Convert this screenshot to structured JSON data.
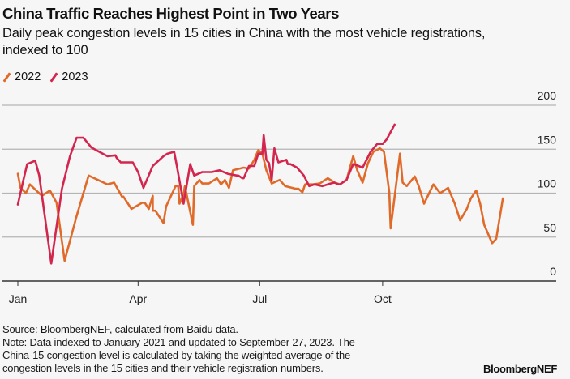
{
  "header": {
    "title": "China Traffic Reaches Highest Point in Two Years",
    "subtitle": "Daily peak congestion levels in 15 cities in China with the most vehicle registrations, indexed to 100"
  },
  "footer": {
    "source": "Source: BloombergNEF, calculated from Baidu data.",
    "note_line1": "Note: Data indexed to January 2021 and updated to September 27, 2023. The",
    "note_line2": "China-15 congestion level is calculated by taking the weighted average of the",
    "note_line3": "congestion levels in the 15 cities and their vehicle registration numbers.",
    "brand": "BloombergNEF"
  },
  "colors": {
    "series_2022": "#e06a2a",
    "series_2023": "#d2264e",
    "grid": "#b5b5b5",
    "axis": "#333333",
    "background": "#f6f6f6"
  },
  "chart_data": {
    "type": "line",
    "title": "China Traffic Reaches Highest Point in Two Years",
    "subtitle": "Daily peak congestion levels in 15 cities in China with the most vehicle registrations, indexed to 100",
    "xlabel": "",
    "ylabel": "",
    "x_unit": "day of year",
    "xlim": [
      0,
      365
    ],
    "ylim": [
      0,
      200
    ],
    "x_ticks": [
      {
        "label": "Jan",
        "day": 0
      },
      {
        "label": "Apr",
        "day": 90
      },
      {
        "label": "Jul",
        "day": 181
      },
      {
        "label": "Oct",
        "day": 273
      }
    ],
    "y_ticks": [
      0,
      50,
      100,
      150,
      200
    ],
    "y_axis_side": "right",
    "grid": true,
    "legend_position": "top-left",
    "series": [
      {
        "name": "2022",
        "points": [
          [
            0,
            122
          ],
          [
            2,
            106
          ],
          [
            6,
            100
          ],
          [
            9,
            110
          ],
          [
            18,
            97
          ],
          [
            24,
            103
          ],
          [
            29,
            89
          ],
          [
            35,
            23
          ],
          [
            44,
            74
          ],
          [
            53,
            120
          ],
          [
            67,
            110
          ],
          [
            72,
            112
          ],
          [
            72,
            112
          ],
          [
            79,
            96
          ],
          [
            78,
            96
          ],
          [
            85,
            82
          ],
          [
            95,
            89
          ],
          [
            101,
            97
          ],
          [
            93,
            89
          ],
          [
            103,
            80
          ],
          [
            98,
            82
          ],
          [
            103,
            80
          ],
          [
            109,
            66
          ],
          [
            101,
            80
          ],
          [
            111,
            85
          ],
          [
            121,
            88
          ],
          [
            124,
            99
          ],
          [
            118,
            108
          ],
          [
            125,
            108
          ],
          [
            125,
            108
          ],
          [
            131,
            64
          ],
          [
            120,
            108
          ],
          [
            132,
            108
          ],
          [
            136,
            115
          ],
          [
            138,
            111
          ],
          [
            143,
            111
          ],
          [
            149,
            117
          ],
          [
            152,
            110
          ],
          [
            155,
            115
          ],
          [
            158,
            106
          ],
          [
            161,
            126
          ],
          [
            169,
            129
          ],
          [
            173,
            128
          ],
          [
            177,
            138
          ],
          [
            180,
            149
          ],
          [
            183,
            145
          ],
          [
            186,
            126
          ],
          [
            190,
            111
          ],
          [
            196,
            115
          ],
          [
            200,
            108
          ],
          [
            208,
            105
          ],
          [
            210,
            105
          ],
          [
            213,
            101
          ],
          [
            215,
            110
          ],
          [
            221,
            110
          ],
          [
            226,
            111
          ],
          [
            232,
            117
          ],
          [
            237,
            112
          ],
          [
            241,
            110
          ],
          [
            246,
            115
          ],
          [
            251,
            142
          ],
          [
            254,
            126
          ],
          [
            258,
            112
          ],
          [
            262,
            134
          ],
          [
            266,
            147
          ],
          [
            271,
            151
          ],
          [
            274,
            147
          ],
          [
            278,
            101
          ],
          [
            279,
            60
          ],
          [
            282,
            96
          ],
          [
            286,
            145
          ],
          [
            288,
            112
          ],
          [
            291,
            108
          ],
          [
            297,
            119
          ],
          [
            300,
            108
          ],
          [
            304,
            88
          ],
          [
            311,
            110
          ],
          [
            316,
            100
          ],
          [
            322,
            106
          ],
          [
            327,
            88
          ],
          [
            331,
            69
          ],
          [
            336,
            82
          ],
          [
            339,
            94
          ],
          [
            343,
            103
          ],
          [
            346,
            88
          ],
          [
            349,
            64
          ],
          [
            355,
            43
          ],
          [
            358,
            48
          ],
          [
            363,
            94
          ]
        ]
      },
      {
        "name": "2023",
        "points": [
          [
            0,
            87
          ],
          [
            4,
            114
          ],
          [
            7,
            133
          ],
          [
            13,
            137
          ],
          [
            16,
            120
          ],
          [
            25,
            20
          ],
          [
            33,
            105
          ],
          [
            39,
            142
          ],
          [
            44,
            163
          ],
          [
            49,
            163
          ],
          [
            55,
            152
          ],
          [
            67,
            142
          ],
          [
            73,
            143
          ],
          [
            74,
            140
          ],
          [
            77,
            135
          ],
          [
            86,
            135
          ],
          [
            90,
            124
          ],
          [
            94,
            106
          ],
          [
            101,
            131
          ],
          [
            109,
            142
          ],
          [
            112,
            145
          ],
          [
            117,
            147
          ],
          [
            119,
            131
          ],
          [
            124,
            88
          ],
          [
            129,
            133
          ],
          [
            132,
            120
          ],
          [
            138,
            124
          ],
          [
            145,
            124
          ],
          [
            151,
            126
          ],
          [
            157,
            122
          ],
          [
            165,
            120
          ],
          [
            168,
            117
          ],
          [
            164,
            120
          ],
          [
            169,
            117
          ],
          [
            174,
            131
          ],
          [
            168,
            117
          ],
          [
            177,
            131
          ],
          [
            181,
            145
          ],
          [
            168,
            117
          ],
          [
            184,
            166
          ],
          [
            173,
            131
          ],
          [
            186,
            138
          ],
          [
            175,
            131
          ],
          [
            188,
            134
          ],
          [
            190,
            115
          ],
          [
            180,
            145
          ],
          [
            192,
            151
          ],
          [
            183,
            145
          ],
          [
            195,
            135
          ],
          [
            188,
            134
          ],
          [
            188,
            134
          ],
          [
            201,
            138
          ],
          [
            209,
            129
          ],
          [
            204,
            133
          ],
          [
            214,
            120
          ],
          [
            218,
            108
          ],
          [
            202,
            133
          ],
          [
            222,
            110
          ],
          [
            228,
            108
          ],
          [
            234,
            111
          ],
          [
            240,
            110
          ],
          [
            246,
            115
          ],
          [
            237,
            112
          ],
          [
            251,
            133
          ],
          [
            241,
            110
          ],
          [
            241,
            110
          ],
          [
            255,
            131
          ],
          [
            258,
            129
          ],
          [
            264,
            147
          ],
          [
            269,
            156
          ],
          [
            273,
            156
          ],
          [
            276,
            161
          ],
          [
            269,
            156
          ],
          [
            282,
            178
          ]
        ]
      }
    ]
  }
}
